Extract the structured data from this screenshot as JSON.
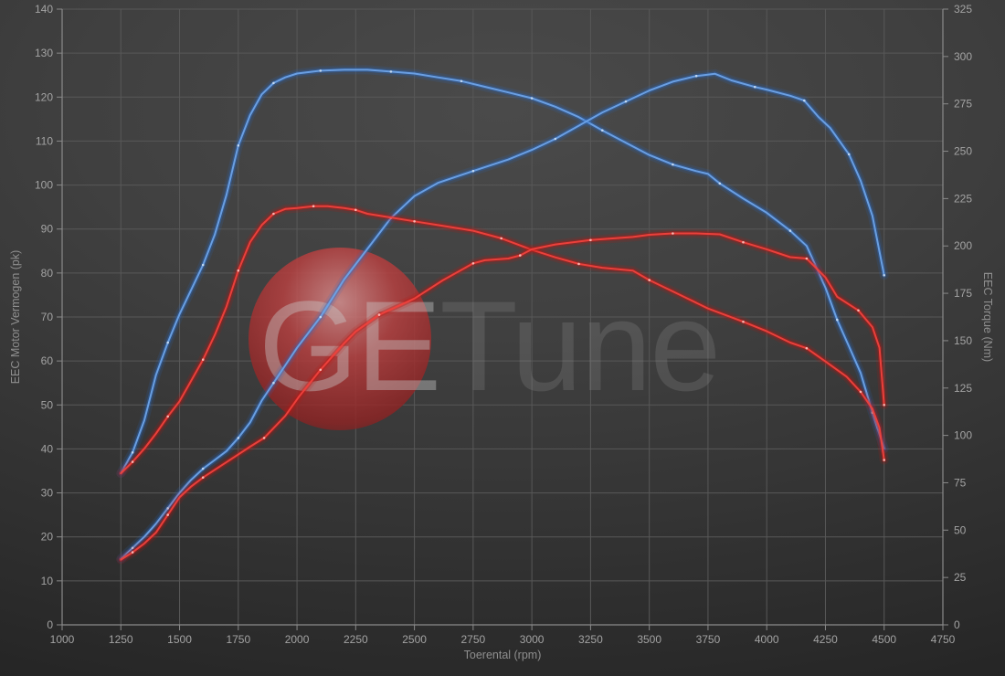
{
  "watermark": {
    "text": "GETune",
    "text_primary": "GE",
    "text_secondary": "Tune",
    "circle_color": "#b03434"
  },
  "colors": {
    "grid": "#585858",
    "axis": "#8a8a8a",
    "tick_text": "#a3a3a3",
    "axis_title_text": "#8f8f8f",
    "background_center": "#4a4a4a",
    "background_edge": "#242424",
    "blue_curve": "#6da3e8",
    "blue_glow": "#2b6cc8",
    "red_curve": "#f0413c",
    "red_glow": "#c41210"
  },
  "chart_data": {
    "type": "line",
    "title": "",
    "xlabel": "Toerental (rpm)",
    "ylabel_left": "EEC Motor Vermogen (pk)",
    "ylabel_right": "EEC Torque (Nm)",
    "x_range": [
      1000,
      4750
    ],
    "y_left_range": [
      0,
      140
    ],
    "y_right_range": [
      0,
      325
    ],
    "x_ticks": [
      1000,
      1250,
      1500,
      1750,
      2000,
      2250,
      2500,
      2750,
      3000,
      3250,
      3500,
      3750,
      4000,
      4250,
      4500,
      4750
    ],
    "y_left_ticks": [
      0,
      10,
      20,
      30,
      40,
      50,
      60,
      70,
      80,
      90,
      100,
      110,
      120,
      130,
      140
    ],
    "y_right_ticks": [
      0,
      25,
      50,
      75,
      100,
      125,
      150,
      175,
      200,
      225,
      250,
      275,
      300,
      325
    ],
    "grid": true,
    "legend": "none",
    "series": [
      {
        "name": "torque-curve-blue",
        "axis": "right",
        "unit": "Nm",
        "color": "#6da3e8",
        "glow": "#2b6cc8",
        "marker": "#cfe2f7",
        "points": [
          [
            1250,
            80
          ],
          [
            1300,
            91
          ],
          [
            1350,
            108
          ],
          [
            1400,
            132
          ],
          [
            1450,
            149
          ],
          [
            1500,
            164
          ],
          [
            1550,
            177
          ],
          [
            1600,
            190
          ],
          [
            1650,
            206
          ],
          [
            1700,
            227
          ],
          [
            1750,
            253
          ],
          [
            1800,
            269
          ],
          [
            1850,
            280
          ],
          [
            1900,
            286
          ],
          [
            1950,
            289
          ],
          [
            2000,
            291
          ],
          [
            2100,
            292.5
          ],
          [
            2200,
            293
          ],
          [
            2300,
            293
          ],
          [
            2400,
            292
          ],
          [
            2500,
            291
          ],
          [
            2600,
            289
          ],
          [
            2700,
            287
          ],
          [
            2800,
            284
          ],
          [
            2900,
            281
          ],
          [
            3000,
            278
          ],
          [
            3100,
            273.5
          ],
          [
            3200,
            268
          ],
          [
            3300,
            261
          ],
          [
            3400,
            254.5
          ],
          [
            3500,
            248
          ],
          [
            3600,
            243
          ],
          [
            3700,
            239.5
          ],
          [
            3750,
            238
          ],
          [
            3800,
            233
          ],
          [
            3900,
            225
          ],
          [
            4000,
            217.5
          ],
          [
            4100,
            208
          ],
          [
            4170,
            200
          ],
          [
            4250,
            178
          ],
          [
            4300,
            161
          ],
          [
            4350,
            147
          ],
          [
            4400,
            133
          ],
          [
            4450,
            112
          ],
          [
            4500,
            93
          ]
        ]
      },
      {
        "name": "power-curve-blue",
        "axis": "left",
        "unit": "pk",
        "color": "#6da3e8",
        "glow": "#2b6cc8",
        "marker": "#cfe2f7",
        "points": [
          [
            1250,
            15
          ],
          [
            1300,
            17.5
          ],
          [
            1350,
            20
          ],
          [
            1400,
            23
          ],
          [
            1450,
            26.5
          ],
          [
            1500,
            30
          ],
          [
            1550,
            33
          ],
          [
            1600,
            35.5
          ],
          [
            1650,
            37.5
          ],
          [
            1700,
            39.5
          ],
          [
            1750,
            42.5
          ],
          [
            1800,
            46
          ],
          [
            1850,
            51
          ],
          [
            1900,
            55
          ],
          [
            1950,
            59
          ],
          [
            2000,
            63
          ],
          [
            2100,
            70
          ],
          [
            2200,
            78.5
          ],
          [
            2300,
            85.5
          ],
          [
            2400,
            92.5
          ],
          [
            2500,
            97.5
          ],
          [
            2600,
            100.5
          ],
          [
            2750,
            103.2
          ],
          [
            2900,
            105.8
          ],
          [
            3000,
            108
          ],
          [
            3100,
            110.5
          ],
          [
            3200,
            113.5
          ],
          [
            3300,
            116.5
          ],
          [
            3400,
            119
          ],
          [
            3500,
            121.5
          ],
          [
            3600,
            123.5
          ],
          [
            3700,
            124.8
          ],
          [
            3780,
            125.3
          ],
          [
            3850,
            123.8
          ],
          [
            3950,
            122.3
          ],
          [
            4000,
            121.7
          ],
          [
            4100,
            120.3
          ],
          [
            4160,
            119.2
          ],
          [
            4220,
            115.5
          ],
          [
            4270,
            113
          ],
          [
            4350,
            107
          ],
          [
            4400,
            101
          ],
          [
            4450,
            93
          ],
          [
            4500,
            79.5
          ]
        ]
      },
      {
        "name": "torque-curve-red",
        "axis": "right",
        "unit": "Nm",
        "color": "#f0413c",
        "glow": "#c41210",
        "marker": "#ffc9c4",
        "points": [
          [
            1250,
            80
          ],
          [
            1300,
            86
          ],
          [
            1350,
            93
          ],
          [
            1400,
            101
          ],
          [
            1450,
            110
          ],
          [
            1500,
            118
          ],
          [
            1550,
            129
          ],
          [
            1600,
            140
          ],
          [
            1650,
            153
          ],
          [
            1700,
            168
          ],
          [
            1750,
            187
          ],
          [
            1800,
            202
          ],
          [
            1850,
            211
          ],
          [
            1900,
            217
          ],
          [
            1950,
            219.5
          ],
          [
            2000,
            220
          ],
          [
            2070,
            221
          ],
          [
            2130,
            221
          ],
          [
            2200,
            220
          ],
          [
            2250,
            219
          ],
          [
            2300,
            217
          ],
          [
            2400,
            215
          ],
          [
            2500,
            213
          ],
          [
            2600,
            211
          ],
          [
            2750,
            208
          ],
          [
            2870,
            204
          ],
          [
            3000,
            198
          ],
          [
            3100,
            194
          ],
          [
            3200,
            190.5
          ],
          [
            3300,
            188.5
          ],
          [
            3430,
            187
          ],
          [
            3500,
            182
          ],
          [
            3600,
            176
          ],
          [
            3750,
            167
          ],
          [
            3900,
            160
          ],
          [
            4000,
            155
          ],
          [
            4100,
            149
          ],
          [
            4170,
            146
          ],
          [
            4250,
            139
          ],
          [
            4340,
            131
          ],
          [
            4400,
            123
          ],
          [
            4450,
            114
          ],
          [
            4480,
            104
          ],
          [
            4500,
            87
          ]
        ]
      },
      {
        "name": "power-curve-red",
        "axis": "left",
        "unit": "pk",
        "color": "#f0413c",
        "glow": "#c41210",
        "marker": "#ffc9c4",
        "points": [
          [
            1250,
            14.8
          ],
          [
            1300,
            16.5
          ],
          [
            1350,
            18.5
          ],
          [
            1400,
            21
          ],
          [
            1450,
            25
          ],
          [
            1500,
            29
          ],
          [
            1550,
            31.5
          ],
          [
            1600,
            33.5
          ],
          [
            1700,
            37
          ],
          [
            1800,
            40.5
          ],
          [
            1860,
            42.5
          ],
          [
            1950,
            47.5
          ],
          [
            2010,
            52
          ],
          [
            2100,
            58
          ],
          [
            2200,
            64
          ],
          [
            2250,
            66.7
          ],
          [
            2350,
            70.5
          ],
          [
            2500,
            74.2
          ],
          [
            2620,
            78.3
          ],
          [
            2750,
            82.2
          ],
          [
            2800,
            82.9
          ],
          [
            2900,
            83.3
          ],
          [
            2950,
            84
          ],
          [
            3000,
            85.4
          ],
          [
            3100,
            86.5
          ],
          [
            3250,
            87.5
          ],
          [
            3430,
            88.2
          ],
          [
            3500,
            88.7
          ],
          [
            3600,
            89
          ],
          [
            3700,
            89
          ],
          [
            3800,
            88.8
          ],
          [
            3900,
            87
          ],
          [
            4000,
            85.4
          ],
          [
            4100,
            83.6
          ],
          [
            4170,
            83.3
          ],
          [
            4250,
            79
          ],
          [
            4300,
            74.6
          ],
          [
            4390,
            71.5
          ],
          [
            4450,
            67.7
          ],
          [
            4480,
            63
          ],
          [
            4500,
            50
          ]
        ]
      }
    ]
  }
}
